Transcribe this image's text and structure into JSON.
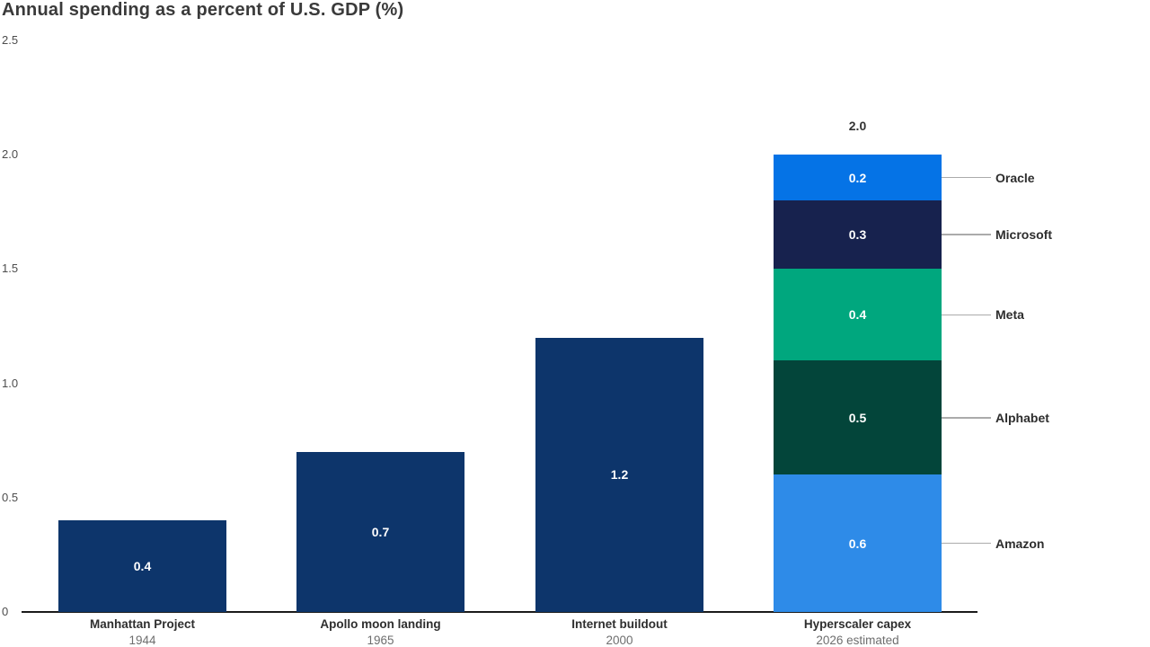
{
  "chart_data": {
    "type": "bar",
    "title": "Annual spending as a percent of U.S. GDP (%)",
    "xlabel": "",
    "ylabel": "",
    "ylim": [
      0,
      2.5
    ],
    "ytick_labels": [
      "0",
      "0.5",
      "1.0",
      "1.5",
      "2.0",
      "2.5"
    ],
    "grid": false,
    "legend_position": "right-annotations-on-stacked-bar",
    "categories": [
      "Manhattan Project",
      "Apollo moon landing",
      "Internet buildout",
      "Hyperscaler capex"
    ],
    "sublabels": [
      "1944",
      "1965",
      "2000",
      "2026 estimated"
    ],
    "bars": [
      {
        "category": "Manhattan Project",
        "sublabel": "1944",
        "value": 0.4,
        "value_label": "0.4",
        "color": "#0d356b"
      },
      {
        "category": "Apollo moon landing",
        "sublabel": "1965",
        "value": 0.7,
        "value_label": "0.7",
        "color": "#0d356b"
      },
      {
        "category": "Internet buildout",
        "sublabel": "2000",
        "value": 1.2,
        "value_label": "1.2",
        "color": "#0d356b"
      },
      {
        "category": "Hyperscaler capex",
        "sublabel": "2026 estimated",
        "total": 2.0,
        "total_label": "2.0",
        "segments": [
          {
            "name": "Amazon",
            "value": 0.6,
            "value_label": "0.6",
            "color": "#2e8be8"
          },
          {
            "name": "Alphabet",
            "value": 0.5,
            "value_label": "0.5",
            "color": "#03453a"
          },
          {
            "name": "Meta",
            "value": 0.4,
            "value_label": "0.4",
            "color": "#00a77e"
          },
          {
            "name": "Microsoft",
            "value": 0.3,
            "value_label": "0.3",
            "color": "#17224e"
          },
          {
            "name": "Oracle",
            "value": 0.2,
            "value_label": "0.2",
            "color": "#0573e6"
          }
        ]
      }
    ]
  },
  "colors": {
    "background": "#ffffff",
    "historical_bar": "#0d356b",
    "axis_line": "#1a1a1a",
    "leader_line": "#ababab",
    "tick_text": "#4d4d4d",
    "category_text": "#2e2e2e",
    "sublabel_text": "#6e6e6e",
    "title_text": "#3a3a3a",
    "value_text": "#ffffff"
  }
}
